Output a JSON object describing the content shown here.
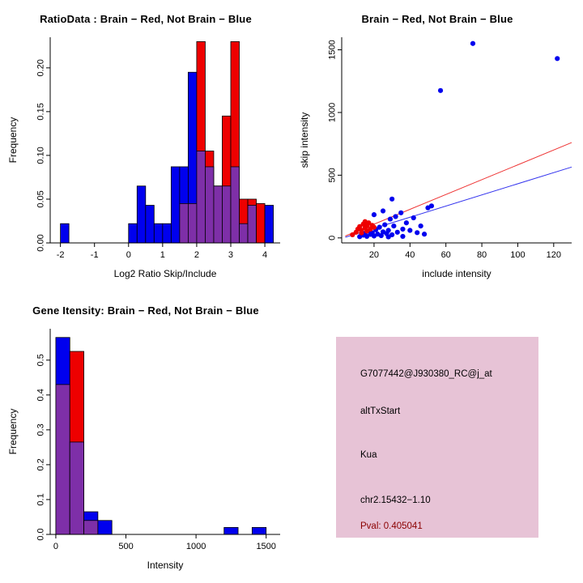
{
  "page": {
    "background": "#FFFFFF"
  },
  "colors": {
    "brain_red": "#EE0000",
    "not_brain_blue": "#0000EE",
    "overlap_purple": "#7E2FA8",
    "info_bg": "#E7C3D6",
    "pval_red": "#8B0000"
  },
  "chart_data": [
    {
      "type": "bar",
      "title": "RatioData : Brain − Red, Not Brain − Blue",
      "xlabel": "Log2 Ratio Skip/Include",
      "ylabel": "Frequency",
      "xlim": [
        -2.3,
        4.45
      ],
      "ylim": [
        0,
        0.235
      ],
      "xticks": [
        -2,
        -1,
        0,
        1,
        2,
        3,
        4
      ],
      "yticks": [
        0,
        0.05,
        0.1,
        0.15,
        0.2
      ],
      "ytick_labels": [
        "0.00",
        "0.05",
        "0.10",
        "0.15",
        "0.20"
      ],
      "bin_width": 0.25,
      "overlap_color": "#7E2FA8",
      "grid": false,
      "series": [
        {
          "name": "Not Brain (Blue)",
          "color": "#0000EE",
          "bins": [
            [
              -2,
              0.022
            ],
            [
              0,
              0.022
            ],
            [
              0.25,
              0.065
            ],
            [
              0.5,
              0.043
            ],
            [
              0.75,
              0.022
            ],
            [
              1,
              0.022
            ],
            [
              1.25,
              0.087
            ],
            [
              1.5,
              0.087
            ],
            [
              1.75,
              0.195
            ],
            [
              2,
              0.105
            ],
            [
              2.25,
              0.087
            ],
            [
              2.5,
              0.065
            ],
            [
              2.75,
              0.065
            ],
            [
              3,
              0.087
            ],
            [
              3.25,
              0.022
            ],
            [
              3.5,
              0.043
            ],
            [
              4,
              0.043
            ]
          ]
        },
        {
          "name": "Brain (Red)",
          "color": "#EE0000",
          "bins": [
            [
              1.5,
              0.045
            ],
            [
              1.75,
              0.045
            ],
            [
              2,
              0.23
            ],
            [
              2.25,
              0.105
            ],
            [
              2.5,
              0.065
            ],
            [
              2.75,
              0.145
            ],
            [
              3,
              0.23
            ],
            [
              3.25,
              0.05
            ],
            [
              3.5,
              0.05
            ],
            [
              3.75,
              0.045
            ]
          ]
        }
      ]
    },
    {
      "type": "scatter",
      "title": "Brain − Red, Not Brain − Blue",
      "xlabel": "include intensity",
      "ylabel": "skip intensity",
      "xlim": [
        2,
        130
      ],
      "ylim": [
        -40,
        1600
      ],
      "xticks": [
        20,
        40,
        60,
        80,
        100,
        120
      ],
      "yticks": [
        0,
        500,
        1000,
        1500
      ],
      "grid": false,
      "series": [
        {
          "name": "Not Brain (Blue)",
          "color": "#0000EE",
          "points": [
            [
              12,
              10
            ],
            [
              14,
              22
            ],
            [
              15,
              35
            ],
            [
              16,
              12
            ],
            [
              17,
              55
            ],
            [
              18,
              28
            ],
            [
              19,
              40
            ],
            [
              20,
              15
            ],
            [
              21,
              65
            ],
            [
              22,
              30
            ],
            [
              23,
              85
            ],
            [
              24,
              18
            ],
            [
              25,
              48
            ],
            [
              26,
              105
            ],
            [
              27,
              35
            ],
            [
              28,
              60
            ],
            [
              29,
              150
            ],
            [
              30,
              25
            ],
            [
              31,
              95
            ],
            [
              32,
              170
            ],
            [
              33,
              45
            ],
            [
              35,
              200
            ],
            [
              36,
              70
            ],
            [
              38,
              120
            ],
            [
              40,
              60
            ],
            [
              42,
              160
            ],
            [
              44,
              42
            ],
            [
              46,
              95
            ],
            [
              50,
              240
            ],
            [
              52,
              255
            ],
            [
              30,
              310
            ],
            [
              25,
              215
            ],
            [
              20,
              185
            ],
            [
              48,
              30
            ],
            [
              36,
              12
            ],
            [
              28,
              8
            ],
            [
              57,
              1175
            ],
            [
              75,
              1550
            ],
            [
              122,
              1430
            ]
          ]
        },
        {
          "name": "Brain (Red)",
          "color": "#EE0000",
          "points": [
            [
              8,
              25
            ],
            [
              10,
              45
            ],
            [
              11,
              70
            ],
            [
              12,
              90
            ],
            [
              13,
              60
            ],
            [
              14,
              110
            ],
            [
              15,
              80
            ],
            [
              15,
              130
            ],
            [
              16,
              95
            ],
            [
              17,
              120
            ],
            [
              18,
              70
            ],
            [
              19,
              100
            ],
            [
              13,
              40
            ],
            [
              16,
              55
            ],
            [
              20,
              85
            ]
          ]
        }
      ],
      "lines": [
        {
          "name": "brain-fit-line",
          "color": "#EE3333",
          "x1": 4,
          "y1": 15,
          "x2": 130,
          "y2": 760
        },
        {
          "name": "not-brain-fit-line",
          "color": "#3333EE",
          "x1": 4,
          "y1": 5,
          "x2": 130,
          "y2": 565
        }
      ]
    },
    {
      "type": "bar",
      "title": "Gene Itensity: Brain − Red, Not Brain − Blue",
      "xlabel": "Intensity",
      "ylabel": "Frequency",
      "xlim": [
        -40,
        1600
      ],
      "ylim": [
        0,
        0.59
      ],
      "xticks": [
        0,
        500,
        1000,
        1500
      ],
      "yticks": [
        0,
        0.1,
        0.2,
        0.3,
        0.4,
        0.5
      ],
      "ytick_labels": [
        "0.0",
        "0.1",
        "0.2",
        "0.3",
        "0.4",
        "0.5"
      ],
      "bin_width": 100,
      "overlap_color": "#7E2FA8",
      "grid": false,
      "series": [
        {
          "name": "Not Brain (Blue)",
          "color": "#0000EE",
          "bins": [
            [
              0,
              0.565
            ],
            [
              100,
              0.265
            ],
            [
              200,
              0.065
            ],
            [
              300,
              0.04
            ],
            [
              1200,
              0.02
            ],
            [
              1400,
              0.02
            ]
          ]
        },
        {
          "name": "Brain (Red)",
          "color": "#EE0000",
          "bins": [
            [
              0,
              0.43
            ],
            [
              100,
              0.525
            ],
            [
              200,
              0.04
            ]
          ]
        }
      ]
    },
    {
      "type": "info",
      "bg": "#E7C3D6",
      "lines": [
        {
          "text": "G7077442@J930380_RC@j_at",
          "color": "#000000"
        },
        {
          "text": "altTxStart",
          "color": "#000000"
        },
        {
          "text": "Kua",
          "color": "#000000"
        },
        {
          "text": "chr2.15432−1.10",
          "color": "#000000"
        },
        {
          "text": "Pval: 0.405041",
          "color": "#8B0000"
        }
      ]
    }
  ]
}
